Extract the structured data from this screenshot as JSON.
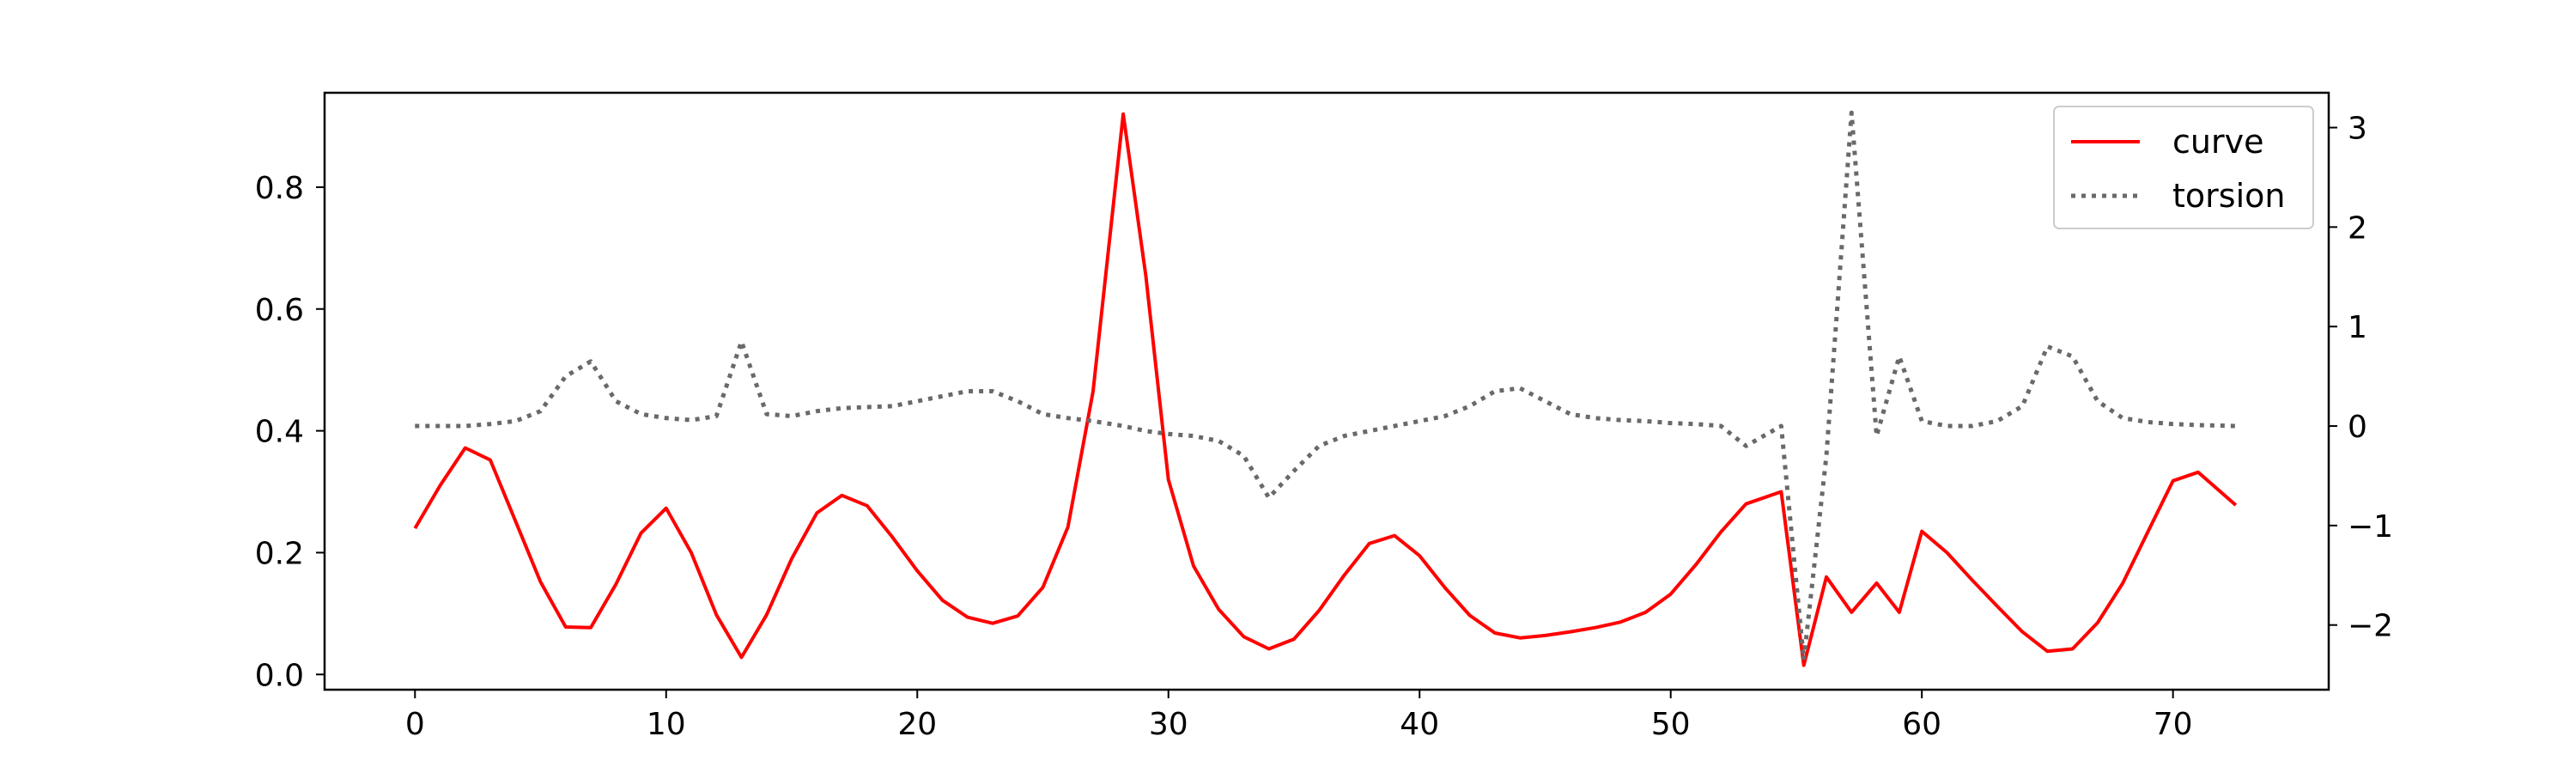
{
  "chart_data": {
    "type": "line",
    "title": "",
    "xlabel": "",
    "ylabel": "",
    "xlim": [
      -3.6,
      76.2
    ],
    "ylim_left": [
      -0.025,
      0.955
    ],
    "ylim_right": [
      -2.65,
      3.35
    ],
    "xticks": [
      0,
      10,
      20,
      30,
      40,
      50,
      60,
      70
    ],
    "yticks_left": [
      0.0,
      0.2,
      0.4,
      0.6,
      0.8
    ],
    "yticks_right": [
      -2,
      -1,
      0,
      1,
      2,
      3
    ],
    "grid": false,
    "legend_position": "top-right",
    "x": [
      0,
      1,
      2,
      3,
      4,
      5,
      6,
      7,
      8,
      9,
      10,
      11,
      12,
      13,
      14,
      15,
      16,
      17,
      18,
      19,
      20,
      21,
      22,
      23,
      24,
      25,
      26,
      27,
      28.2,
      29.1,
      30,
      31,
      32,
      33,
      34,
      35,
      36,
      37,
      38,
      39,
      40,
      41,
      42,
      43,
      44,
      45,
      46,
      47,
      48,
      49,
      50,
      51,
      52,
      53,
      54.4,
      55.3,
      56.2,
      57.2,
      58.2,
      59.1,
      60,
      61,
      62,
      63,
      64,
      65,
      66,
      67,
      68,
      69,
      70,
      71,
      72.5
    ],
    "series": [
      {
        "name": "curve",
        "axis": "left",
        "color": "#ff0000",
        "linestyle": "solid",
        "values": [
          0.24,
          0.31,
          0.372,
          0.352,
          0.252,
          0.152,
          0.078,
          0.077,
          0.148,
          0.232,
          0.273,
          0.2,
          0.098,
          0.028,
          0.098,
          0.19,
          0.265,
          0.294,
          0.277,
          0.226,
          0.17,
          0.122,
          0.094,
          0.084,
          0.096,
          0.143,
          0.242,
          0.465,
          0.92,
          0.655,
          0.32,
          0.178,
          0.107,
          0.062,
          0.042,
          0.058,
          0.105,
          0.163,
          0.215,
          0.228,
          0.195,
          0.143,
          0.097,
          0.068,
          0.06,
          0.064,
          0.07,
          0.077,
          0.086,
          0.102,
          0.132,
          0.18,
          0.234,
          0.28,
          0.3,
          0.015,
          0.16,
          0.102,
          0.15,
          0.102,
          0.235,
          0.2,
          0.155,
          0.112,
          0.07,
          0.038,
          0.042,
          0.085,
          0.15,
          0.234,
          0.318,
          0.332,
          0.278
        ]
      },
      {
        "name": "torsion",
        "axis": "right",
        "color": "#696969",
        "linestyle": "dotted",
        "values": [
          0.0,
          0.0,
          0.0,
          0.02,
          0.05,
          0.15,
          0.5,
          0.65,
          0.25,
          0.12,
          0.08,
          0.06,
          0.1,
          0.85,
          0.12,
          0.1,
          0.15,
          0.18,
          0.19,
          0.2,
          0.25,
          0.3,
          0.35,
          0.35,
          0.25,
          0.12,
          0.08,
          0.05,
          0.0,
          -0.05,
          -0.08,
          -0.1,
          -0.15,
          -0.3,
          -0.72,
          -0.45,
          -0.2,
          -0.1,
          -0.05,
          0.0,
          0.05,
          0.1,
          0.2,
          0.35,
          0.38,
          0.25,
          0.12,
          0.08,
          0.06,
          0.05,
          0.03,
          0.02,
          0.0,
          -0.2,
          0.0,
          -2.35,
          -0.3,
          3.15,
          -0.1,
          0.7,
          0.05,
          0.0,
          0.0,
          0.05,
          0.2,
          0.8,
          0.7,
          0.25,
          0.08,
          0.04,
          0.02,
          0.01,
          0.0
        ]
      }
    ]
  }
}
